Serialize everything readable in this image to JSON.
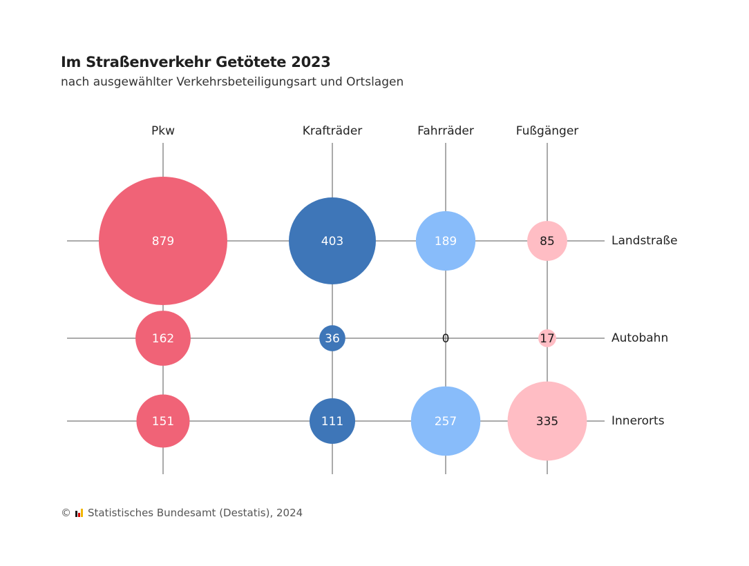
{
  "title": "Im Straßenverkehr Getötete 2023",
  "subtitle": "nach ausgewählter Verkehrsbeteiligungsart und Ortslagen",
  "footer": {
    "copyright": "©",
    "source": "Statistisches Bundesamt (Destatis), 2024"
  },
  "chart_data": {
    "type": "bubble-matrix",
    "columns": [
      "Pkw",
      "Krafträder",
      "Fahrräder",
      "Fußgänger"
    ],
    "rows": [
      "Landstraße",
      "Autobahn",
      "Innerorts"
    ],
    "values": [
      [
        879,
        403,
        189,
        85
      ],
      [
        162,
        36,
        0,
        17
      ],
      [
        151,
        111,
        257,
        335
      ]
    ],
    "colors": [
      "#f06377",
      "#3e76b8",
      "#88bcfa",
      "#ffbdc4"
    ],
    "label_colors": [
      "#ffffff",
      "#ffffff",
      "#ffffff",
      "#1a1a1a"
    ],
    "grid_color": "#555555"
  }
}
